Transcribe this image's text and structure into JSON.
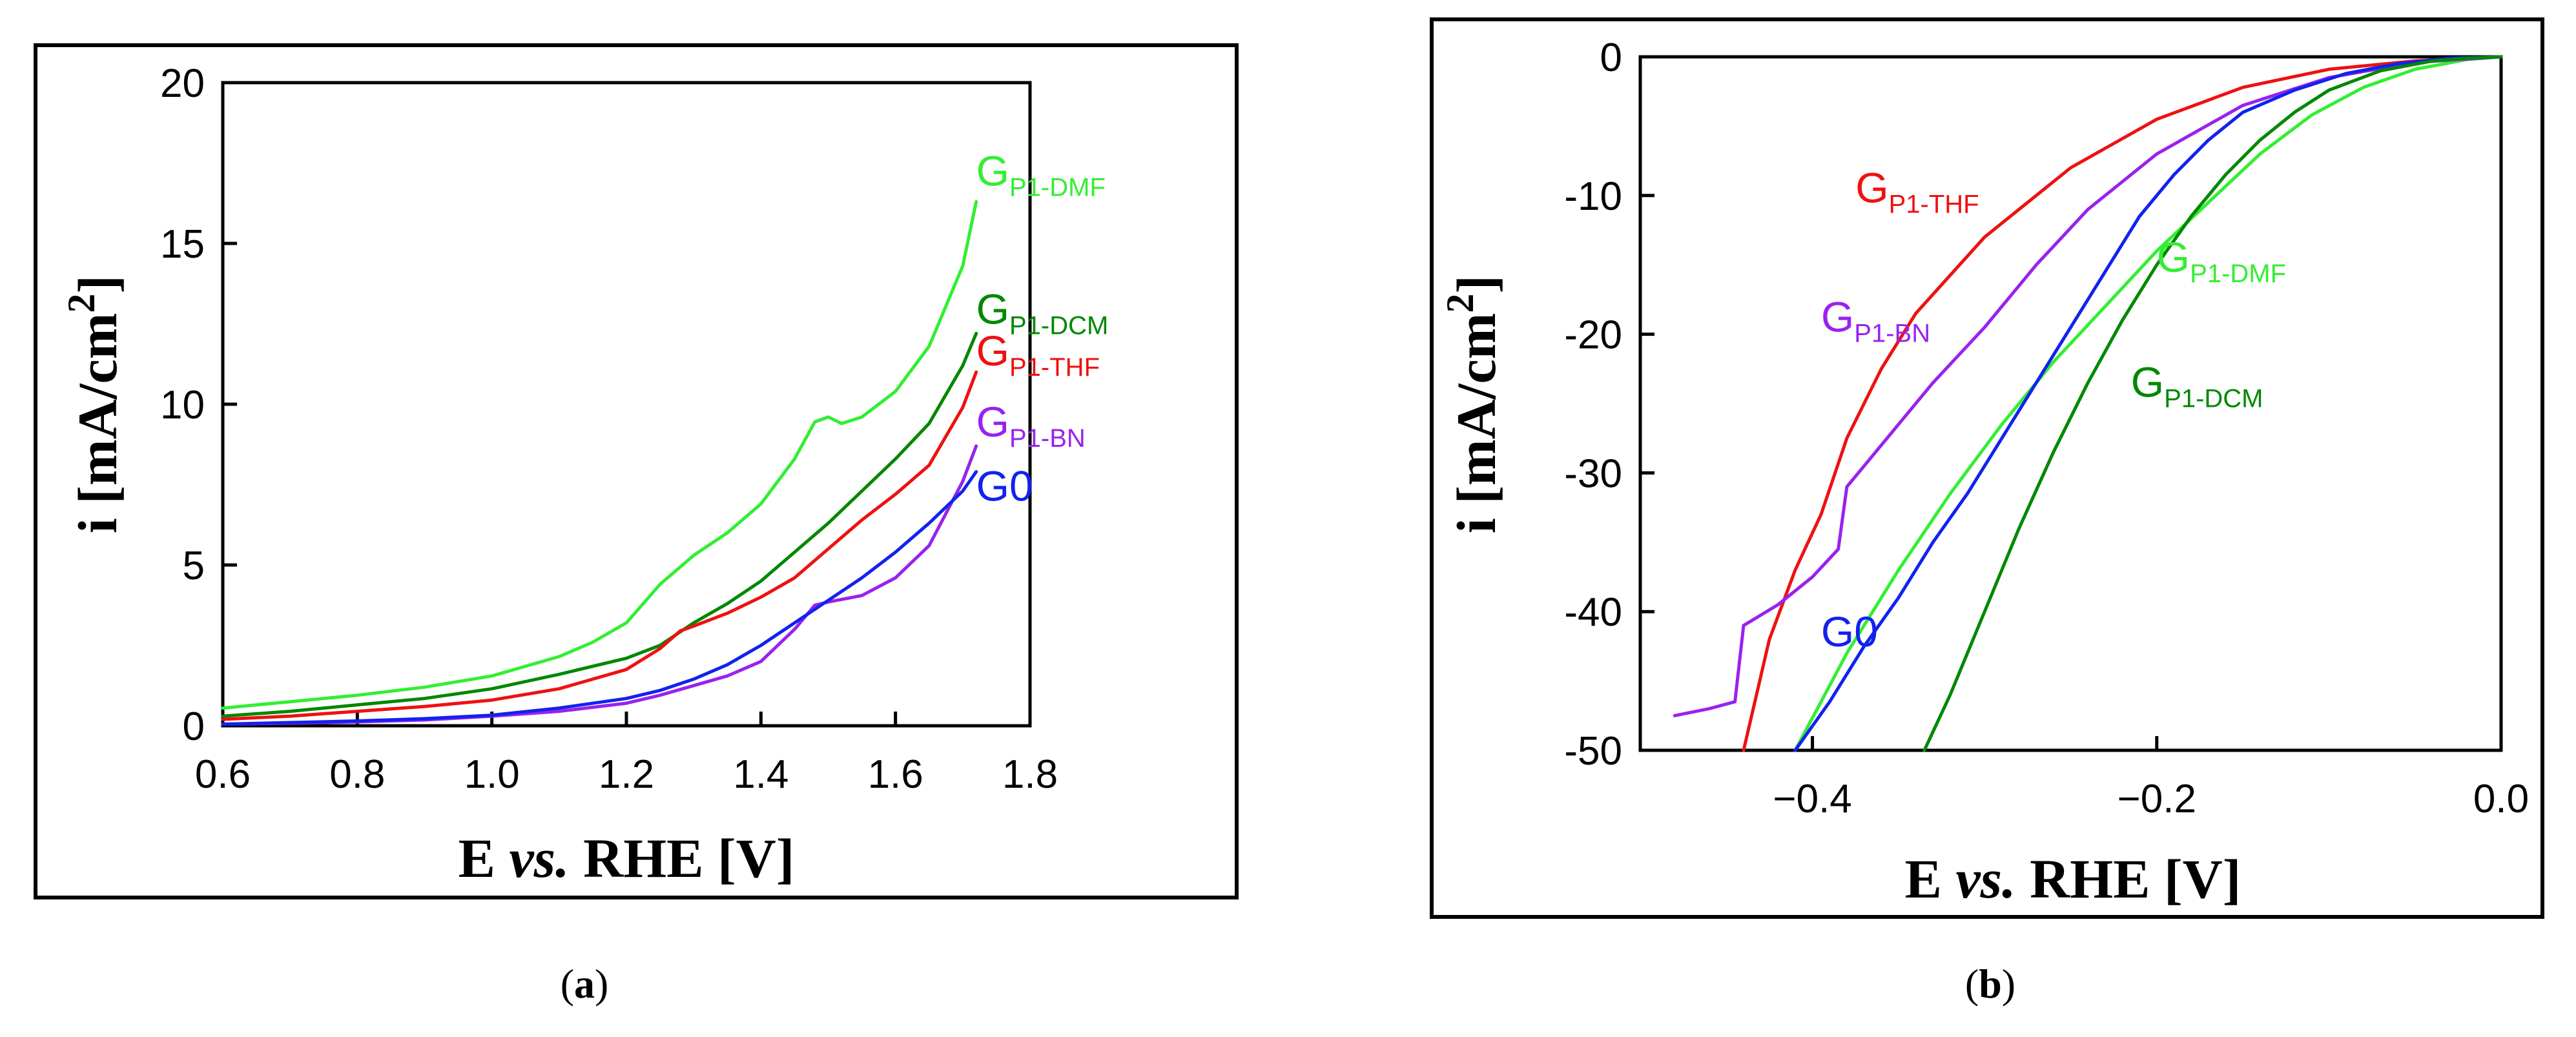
{
  "chart_data": [
    {
      "panel_label": "a",
      "type": "line",
      "xlabel": "E vs. RHE [V]",
      "xlabel_parts": [
        "E ",
        "vs.",
        " RHE [V]"
      ],
      "ylabel": "i [mA/cm2]",
      "ylabel_parts": [
        "i [mA/cm",
        "2",
        "]"
      ],
      "xlim": [
        0.6,
        1.8
      ],
      "ylim": [
        0,
        20
      ],
      "xticks": [
        0.6,
        0.8,
        1.0,
        1.2,
        1.4,
        1.6,
        1.8
      ],
      "xtick_labels": [
        "0.6",
        "0.8",
        "1.0",
        "1.2",
        "1.4",
        "1.6",
        "1.8"
      ],
      "yticks": [
        0,
        5,
        10,
        15,
        20
      ],
      "ytick_labels": [
        "0",
        "5",
        "10",
        "15",
        "20"
      ],
      "grid": false,
      "series": [
        {
          "name": "G P1-DMF",
          "label_main": "G",
          "label_sub": "P1-DMF",
          "color": "#33ee33",
          "label_pos": [
            1.72,
            16.8
          ],
          "x": [
            0.6,
            0.7,
            0.8,
            0.9,
            1.0,
            1.1,
            1.15,
            1.2,
            1.25,
            1.3,
            1.35,
            1.4,
            1.45,
            1.48,
            1.5,
            1.52,
            1.55,
            1.6,
            1.65,
            1.7,
            1.72
          ],
          "y": [
            0.55,
            0.75,
            0.95,
            1.2,
            1.55,
            2.15,
            2.6,
            3.2,
            4.4,
            5.3,
            6.0,
            6.9,
            8.3,
            9.45,
            9.6,
            9.4,
            9.6,
            10.4,
            11.8,
            14.3,
            16.3
          ]
        },
        {
          "name": "G P1-DCM",
          "label_main": "G",
          "label_sub": "P1-DCM",
          "color": "#008800",
          "label_pos": [
            1.72,
            12.5
          ],
          "x": [
            0.6,
            0.7,
            0.8,
            0.9,
            1.0,
            1.1,
            1.2,
            1.25,
            1.3,
            1.35,
            1.4,
            1.45,
            1.5,
            1.55,
            1.6,
            1.65,
            1.7,
            1.72
          ],
          "y": [
            0.3,
            0.45,
            0.65,
            0.85,
            1.15,
            1.6,
            2.1,
            2.5,
            3.2,
            3.8,
            4.5,
            5.4,
            6.3,
            7.3,
            8.3,
            9.4,
            11.2,
            12.2
          ]
        },
        {
          "name": "G P1-THF",
          "label_main": "G",
          "label_sub": "P1-THF",
          "color": "#ee1111",
          "label_pos": [
            1.72,
            11.2
          ],
          "x": [
            0.6,
            0.7,
            0.8,
            0.9,
            1.0,
            1.1,
            1.2,
            1.25,
            1.28,
            1.3,
            1.35,
            1.4,
            1.45,
            1.5,
            1.55,
            1.6,
            1.65,
            1.7,
            1.72
          ],
          "y": [
            0.2,
            0.3,
            0.45,
            0.6,
            0.8,
            1.15,
            1.75,
            2.4,
            2.95,
            3.1,
            3.5,
            4.0,
            4.6,
            5.5,
            6.4,
            7.2,
            8.1,
            9.9,
            11.0
          ]
        },
        {
          "name": "G P1-BN",
          "label_main": "G",
          "label_sub": "P1-BN",
          "color": "#9922ee",
          "label_pos": [
            1.72,
            9.0
          ],
          "x": [
            0.6,
            0.7,
            0.8,
            0.9,
            1.0,
            1.1,
            1.2,
            1.25,
            1.3,
            1.35,
            1.4,
            1.45,
            1.48,
            1.5,
            1.55,
            1.6,
            1.65,
            1.7,
            1.72
          ],
          "y": [
            0.05,
            0.08,
            0.12,
            0.18,
            0.3,
            0.45,
            0.7,
            0.95,
            1.25,
            1.55,
            2.0,
            3.0,
            3.75,
            3.85,
            4.05,
            4.6,
            5.6,
            7.6,
            8.7
          ]
        },
        {
          "name": "G0",
          "label_main": "G0",
          "label_sub": "",
          "color": "#1122ee",
          "label_pos": [
            1.72,
            7.0
          ],
          "x": [
            0.6,
            0.7,
            0.8,
            0.9,
            1.0,
            1.1,
            1.2,
            1.25,
            1.3,
            1.35,
            1.4,
            1.45,
            1.5,
            1.55,
            1.6,
            1.65,
            1.7,
            1.72
          ],
          "y": [
            0.05,
            0.1,
            0.15,
            0.22,
            0.33,
            0.55,
            0.85,
            1.1,
            1.45,
            1.9,
            2.5,
            3.2,
            3.9,
            4.6,
            5.4,
            6.3,
            7.3,
            7.9
          ]
        }
      ]
    },
    {
      "panel_label": "b",
      "type": "line",
      "xlabel": "E vs. RHE [V]",
      "xlabel_parts": [
        "E ",
        "vs.",
        " RHE [V]"
      ],
      "ylabel": "i [mA/cm2]",
      "ylabel_parts": [
        "i [mA/cm",
        "2",
        "]"
      ],
      "xlim": [
        -0.5,
        0.0
      ],
      "ylim": [
        -50,
        0
      ],
      "xticks": [
        -0.4,
        -0.2,
        0.0
      ],
      "xtick_labels": [
        "−0.4",
        "−0.2",
        "0.0"
      ],
      "yticks": [
        0,
        -10,
        -20,
        -30,
        -40,
        -50
      ],
      "ytick_labels": [
        "0",
        "-10",
        "-20",
        "-30",
        "-40",
        "-50"
      ],
      "grid": false,
      "series": [
        {
          "name": "G P1-THF",
          "label_main": "G",
          "label_sub": "P1-THF",
          "color": "#ee1111",
          "label_pos": [
            -0.375,
            -10.5
          ],
          "x": [
            -0.44,
            -0.425,
            -0.41,
            -0.395,
            -0.38,
            -0.36,
            -0.34,
            -0.3,
            -0.25,
            -0.2,
            -0.15,
            -0.1,
            -0.05,
            0.0
          ],
          "y": [
            -50,
            -42,
            -37,
            -33,
            -27.5,
            -22.5,
            -18.5,
            -13,
            -8,
            -4.5,
            -2.2,
            -0.9,
            -0.3,
            0
          ]
        },
        {
          "name": "G P1-DMF",
          "label_main": "G",
          "label_sub": "P1-DMF",
          "color": "#33ee33",
          "label_pos": [
            -0.2,
            -15.5
          ],
          "x": [
            -0.41,
            -0.38,
            -0.35,
            -0.32,
            -0.29,
            -0.26,
            -0.23,
            -0.2,
            -0.17,
            -0.14,
            -0.11,
            -0.08,
            -0.05,
            -0.02,
            0.0
          ],
          "y": [
            -50,
            -43,
            -37,
            -31.5,
            -26.5,
            -22,
            -18,
            -14,
            -10.5,
            -7,
            -4.2,
            -2.2,
            -0.9,
            -0.2,
            0
          ]
        },
        {
          "name": "G P1-BN",
          "label_main": "G",
          "label_sub": "P1-BN",
          "color": "#9922ee",
          "label_pos": [
            -0.395,
            -19.8
          ],
          "x": [
            -0.48,
            -0.46,
            -0.445,
            -0.44,
            -0.42,
            -0.4,
            -0.385,
            -0.38,
            -0.37,
            -0.35,
            -0.33,
            -0.3,
            -0.27,
            -0.24,
            -0.2,
            -0.15,
            -0.1,
            -0.05,
            0.0
          ],
          "y": [
            -47.5,
            -47,
            -46.5,
            -41,
            -39.5,
            -37.5,
            -35.5,
            -31,
            -29.5,
            -26.5,
            -23.5,
            -19.5,
            -15,
            -11,
            -7,
            -3.5,
            -1.5,
            -0.4,
            0
          ]
        },
        {
          "name": "G0",
          "label_main": "G0",
          "label_sub": "",
          "color": "#1122ee",
          "label_pos": [
            -0.395,
            -42.5
          ],
          "x": [
            -0.41,
            -0.39,
            -0.37,
            -0.35,
            -0.33,
            -0.31,
            -0.29,
            -0.27,
            -0.25,
            -0.23,
            -0.21,
            -0.19,
            -0.17,
            -0.15,
            -0.12,
            -0.09,
            -0.06,
            -0.03,
            0.0
          ],
          "y": [
            -50,
            -46.5,
            -42.5,
            -39,
            -35,
            -31.5,
            -27.5,
            -23.5,
            -19.5,
            -15.5,
            -11.5,
            -8.5,
            -6,
            -4,
            -2.4,
            -1.2,
            -0.5,
            -0.1,
            0
          ]
        },
        {
          "name": "G P1-DCM",
          "label_main": "G",
          "label_sub": "P1-DCM",
          "color": "#008800",
          "label_pos": [
            -0.215,
            -24.5
          ],
          "x": [
            -0.335,
            -0.32,
            -0.3,
            -0.28,
            -0.26,
            -0.24,
            -0.22,
            -0.2,
            -0.18,
            -0.16,
            -0.14,
            -0.12,
            -0.1,
            -0.07,
            -0.04,
            -0.02,
            0.0
          ],
          "y": [
            -50,
            -46,
            -40,
            -34,
            -28.5,
            -23.5,
            -19,
            -15,
            -11.5,
            -8.5,
            -6,
            -4,
            -2.4,
            -1,
            -0.3,
            -0.1,
            0
          ]
        }
      ]
    }
  ]
}
